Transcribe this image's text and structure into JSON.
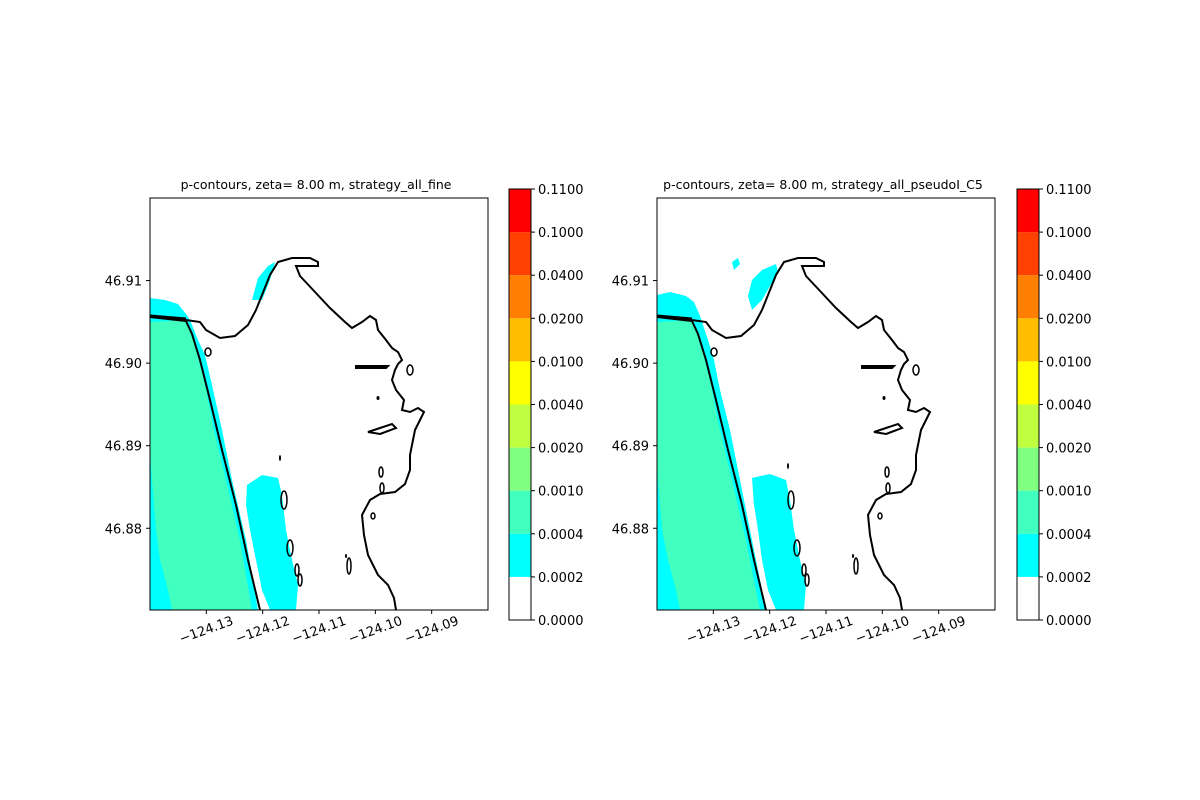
{
  "chart_data": [
    {
      "type": "heatmap",
      "title": "p-contours, zeta= 8.00 m, strategy_all_fine",
      "x_ticks": [
        -124.13,
        -124.12,
        -124.11,
        -124.1,
        -124.09
      ],
      "x_tick_labels": [
        "−124.13",
        "−124.12",
        "−124.11",
        "−124.10",
        "−124.09"
      ],
      "y_ticks": [
        46.88,
        46.89,
        46.9,
        46.91
      ],
      "y_tick_labels": [
        "46.88",
        "46.89",
        "46.90",
        "46.91"
      ],
      "xlim": [
        -124.14,
        -124.08
      ],
      "ylim": [
        46.8701,
        46.92
      ],
      "colorbar": {
        "levels": [
          0.0,
          0.0002,
          0.0004,
          0.001,
          0.002,
          0.004,
          0.01,
          0.02,
          0.04,
          0.1,
          0.11
        ],
        "labels": [
          "0.0000",
          "0.0002",
          "0.0004",
          "0.0010",
          "0.0020",
          "0.0040",
          "0.0100",
          "0.0200",
          "0.0400",
          "0.1000",
          "0.1100"
        ],
        "colors": [
          "#ffffff",
          "#00ffff",
          "#40ffbf",
          "#80ff80",
          "#c0ff40",
          "#ffff00",
          "#ffbf00",
          "#ff8000",
          "#ff4000",
          "#ff0000"
        ]
      },
      "regions": [
        {
          "level": "0.0002-0.0004",
          "color": "#00ffff",
          "description": "surf zone & offshore band"
        },
        {
          "level": "0.0004-0.0010",
          "color": "#40ffbf",
          "description": "nearshore wedge west of shoreline"
        }
      ],
      "grid": false
    },
    {
      "type": "heatmap",
      "title": "p-contours, zeta= 8.00 m, strategy_all_pseudoI_C5",
      "x_ticks": [
        -124.13,
        -124.12,
        -124.11,
        -124.1,
        -124.09
      ],
      "x_tick_labels": [
        "−124.13",
        "−124.12",
        "−124.11",
        "−124.10",
        "−124.09"
      ],
      "y_ticks": [
        46.88,
        46.89,
        46.9,
        46.91
      ],
      "y_tick_labels": [
        "46.88",
        "46.89",
        "46.90",
        "46.91"
      ],
      "xlim": [
        -124.14,
        -124.08
      ],
      "ylim": [
        46.8701,
        46.92
      ],
      "colorbar": {
        "levels": [
          0.0,
          0.0002,
          0.0004,
          0.001,
          0.002,
          0.004,
          0.01,
          0.02,
          0.04,
          0.1,
          0.11
        ],
        "labels": [
          "0.0000",
          "0.0002",
          "0.0004",
          "0.0010",
          "0.0020",
          "0.0040",
          "0.0100",
          "0.0200",
          "0.0400",
          "0.1000",
          "0.1100"
        ],
        "colors": [
          "#ffffff",
          "#00ffff",
          "#40ffbf",
          "#80ff80",
          "#c0ff40",
          "#ffff00",
          "#ffbf00",
          "#ff8000",
          "#ff4000",
          "#ff0000"
        ]
      },
      "regions": [
        {
          "level": "0.0002-0.0004",
          "color": "#00ffff",
          "description": "surf zone & offshore band"
        },
        {
          "level": "0.0004-0.0010",
          "color": "#40ffbf",
          "description": "nearshore wedge west of shoreline"
        }
      ],
      "grid": false
    }
  ]
}
